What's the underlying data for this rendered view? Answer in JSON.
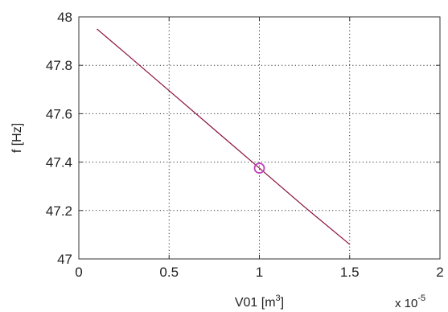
{
  "chart_data": {
    "type": "line",
    "title": "",
    "xlabel": "V01 [m",
    "xlabel_sup": "3",
    "xlabel_suffix": "]",
    "ylabel": "f [Hz]",
    "x_multiplier_base": "x 10",
    "x_multiplier_exp": "-5",
    "xlim": [
      0,
      2
    ],
    "ylim": [
      47,
      48
    ],
    "xticks": [
      0,
      0.5,
      1,
      1.5,
      2
    ],
    "xtick_labels": [
      "0",
      "0.5",
      "1",
      "1.5",
      "2"
    ],
    "yticks": [
      47,
      47.2,
      47.4,
      47.6,
      47.8,
      48
    ],
    "ytick_labels": [
      "47",
      "47.2",
      "47.4",
      "47.6",
      "47.8",
      "48"
    ],
    "grid": true,
    "series": [
      {
        "x": [
          0.1,
          0.25,
          0.5,
          0.75,
          1.0,
          1.25,
          1.5
        ],
        "y": [
          47.95,
          47.855,
          47.695,
          47.535,
          47.375,
          47.215,
          47.06
        ],
        "color": "#8a1040"
      }
    ],
    "marker": {
      "x": 1.0,
      "y": 47.375,
      "shape": "circle",
      "color": "#c040c0"
    },
    "axis_color": "#333333",
    "grid_color": "#333333"
  }
}
